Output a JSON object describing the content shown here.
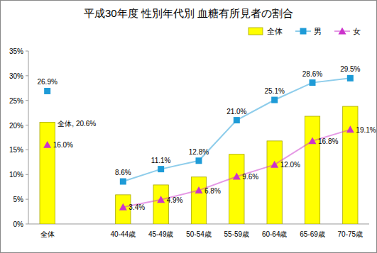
{
  "chart_data": {
    "type": "bar",
    "title": "平成30年度 性別年代別 血糖有所見者の割合",
    "categories": [
      "全体",
      null,
      "40-44歳",
      "45-49歳",
      "50-54歳",
      "55-59歳",
      "60-64歳",
      "65-69歳",
      "70-75歳"
    ],
    "series": [
      {
        "name": "全体",
        "type": "bar",
        "color": "#FFFF00",
        "values": [
          20.6,
          null,
          5.9,
          7.9,
          9.5,
          14.1,
          16.8,
          21.8,
          23.8
        ],
        "value_labels": [
          "全体, 20.6%",
          null,
          null,
          null,
          null,
          null,
          null,
          null,
          null
        ]
      },
      {
        "name": "男",
        "type": "line",
        "color": "#1E9BD7",
        "marker": "square",
        "data_labels": true,
        "values": [
          26.9,
          null,
          8.6,
          11.1,
          12.8,
          21.0,
          25.1,
          28.6,
          29.5
        ],
        "value_labels": [
          "26.9%",
          null,
          "8.6%",
          "11.1%",
          "12.8%",
          "21.0%",
          "25.1%",
          "28.6%",
          "29.5%"
        ]
      },
      {
        "name": "女",
        "type": "line",
        "color": "#CC33CC",
        "marker": "triangle",
        "data_labels": true,
        "values": [
          16.0,
          null,
          3.4,
          4.9,
          6.8,
          9.6,
          12.0,
          16.8,
          19.1
        ],
        "value_labels": [
          "16.0%",
          null,
          "3.4%",
          "4.9%",
          "6.8%",
          "9.6%",
          "12.0%",
          "16.8%",
          "19.1%"
        ]
      }
    ],
    "ylim": [
      0,
      35
    ],
    "yticks": [
      {
        "value": 0,
        "label": "0%"
      },
      {
        "value": 5,
        "label": "5%"
      },
      {
        "value": 10,
        "label": "10%"
      },
      {
        "value": 15,
        "label": "15%"
      },
      {
        "value": 20,
        "label": "20%"
      },
      {
        "value": 25,
        "label": "25%"
      },
      {
        "value": 30,
        "label": "30%"
      },
      {
        "value": 35,
        "label": "35%"
      }
    ],
    "grid": false,
    "legend": "top-right"
  }
}
